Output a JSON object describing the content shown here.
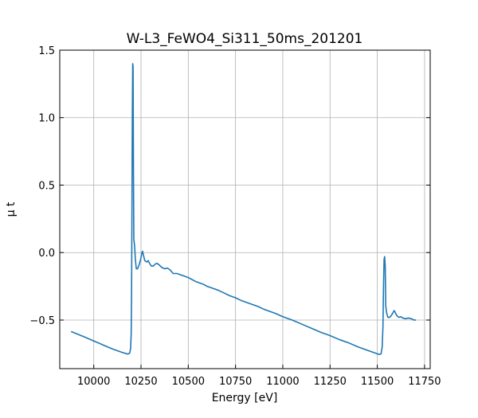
{
  "chart_data": {
    "type": "line",
    "title": "W-L3_FeWO4_Si311_50ms_201201",
    "xlabel": "Energy [eV]",
    "ylabel": "μ t",
    "xlim": [
      9820,
      11780
    ],
    "ylim": [
      -0.86,
      1.5
    ],
    "xticks": [
      10000,
      10250,
      10500,
      10750,
      11000,
      11250,
      11500,
      11750
    ],
    "yticks": [
      -0.5,
      0.0,
      0.5,
      1.0,
      1.5
    ],
    "xtick_labels": [
      "10000",
      "10250",
      "10500",
      "10750",
      "11000",
      "11250",
      "11500",
      "11750"
    ],
    "ytick_labels": [
      "−0.5",
      "0.0",
      "0.5",
      "1.0",
      "1.5"
    ],
    "grid": true,
    "series": [
      {
        "color": "#1f77b4",
        "points": [
          [
            9880,
            -0.585
          ],
          [
            9950,
            -0.625
          ],
          [
            10000,
            -0.655
          ],
          [
            10050,
            -0.685
          ],
          [
            10100,
            -0.715
          ],
          [
            10150,
            -0.74
          ],
          [
            10180,
            -0.752
          ],
          [
            10190,
            -0.745
          ],
          [
            10195,
            -0.71
          ],
          [
            10198,
            -0.6
          ],
          [
            10200,
            -0.3
          ],
          [
            10202,
            0.3
          ],
          [
            10204,
            1.0
          ],
          [
            10206,
            1.4
          ],
          [
            10208,
            1.38
          ],
          [
            10210,
            0.6
          ],
          [
            10212,
            0.1
          ],
          [
            10216,
            0.05
          ],
          [
            10220,
            -0.05
          ],
          [
            10225,
            -0.12
          ],
          [
            10232,
            -0.12
          ],
          [
            10240,
            -0.09
          ],
          [
            10248,
            -0.05
          ],
          [
            10255,
            0.0
          ],
          [
            10258,
            0.01
          ],
          [
            10263,
            -0.02
          ],
          [
            10270,
            -0.06
          ],
          [
            10280,
            -0.07
          ],
          [
            10288,
            -0.06
          ],
          [
            10295,
            -0.08
          ],
          [
            10305,
            -0.1
          ],
          [
            10315,
            -0.1
          ],
          [
            10325,
            -0.085
          ],
          [
            10335,
            -0.08
          ],
          [
            10345,
            -0.09
          ],
          [
            10360,
            -0.11
          ],
          [
            10375,
            -0.12
          ],
          [
            10390,
            -0.115
          ],
          [
            10405,
            -0.13
          ],
          [
            10420,
            -0.155
          ],
          [
            10440,
            -0.155
          ],
          [
            10460,
            -0.165
          ],
          [
            10480,
            -0.175
          ],
          [
            10500,
            -0.185
          ],
          [
            10520,
            -0.2
          ],
          [
            10540,
            -0.215
          ],
          [
            10560,
            -0.225
          ],
          [
            10580,
            -0.235
          ],
          [
            10600,
            -0.25
          ],
          [
            10630,
            -0.265
          ],
          [
            10660,
            -0.28
          ],
          [
            10690,
            -0.3
          ],
          [
            10720,
            -0.32
          ],
          [
            10750,
            -0.335
          ],
          [
            10780,
            -0.355
          ],
          [
            10810,
            -0.37
          ],
          [
            10840,
            -0.385
          ],
          [
            10870,
            -0.4
          ],
          [
            10900,
            -0.42
          ],
          [
            10930,
            -0.435
          ],
          [
            10960,
            -0.45
          ],
          [
            11000,
            -0.475
          ],
          [
            11050,
            -0.5
          ],
          [
            11100,
            -0.53
          ],
          [
            11150,
            -0.56
          ],
          [
            11200,
            -0.59
          ],
          [
            11250,
            -0.615
          ],
          [
            11300,
            -0.645
          ],
          [
            11350,
            -0.67
          ],
          [
            11400,
            -0.7
          ],
          [
            11450,
            -0.725
          ],
          [
            11490,
            -0.745
          ],
          [
            11510,
            -0.755
          ],
          [
            11520,
            -0.75
          ],
          [
            11526,
            -0.7
          ],
          [
            11530,
            -0.55
          ],
          [
            11533,
            -0.25
          ],
          [
            11536,
            -0.05
          ],
          [
            11539,
            -0.03
          ],
          [
            11542,
            -0.1
          ],
          [
            11545,
            -0.4
          ],
          [
            11550,
            -0.45
          ],
          [
            11556,
            -0.48
          ],
          [
            11565,
            -0.48
          ],
          [
            11575,
            -0.465
          ],
          [
            11585,
            -0.44
          ],
          [
            11590,
            -0.43
          ],
          [
            11597,
            -0.45
          ],
          [
            11605,
            -0.47
          ],
          [
            11615,
            -0.48
          ],
          [
            11625,
            -0.475
          ],
          [
            11635,
            -0.485
          ],
          [
            11650,
            -0.49
          ],
          [
            11665,
            -0.485
          ],
          [
            11680,
            -0.49
          ],
          [
            11695,
            -0.5
          ],
          [
            11705,
            -0.5
          ]
        ]
      }
    ]
  }
}
